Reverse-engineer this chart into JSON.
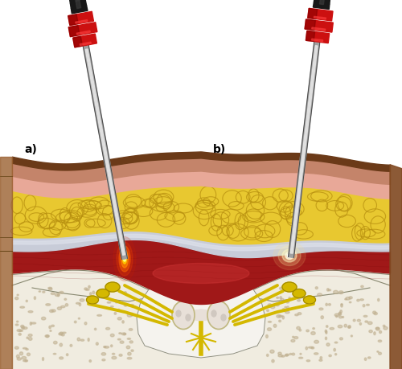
{
  "fig_width": 5.0,
  "fig_height": 4.59,
  "dpi": 100,
  "bg_color": "#ffffff",
  "label_a": "a)",
  "label_b": "b)",
  "label_fontsize": 10,
  "label_color": "#000000",
  "colors": {
    "skin_dark": "#6b3a18",
    "skin_mid": "#c4846a",
    "skin_light": "#e8a898",
    "fat_yellow": "#e8c830",
    "fat_yellow2": "#c8a010",
    "fat_cell_edge": "#b89010",
    "fascia_white": "#c8ccd8",
    "fascia_light": "#dde0ea",
    "muscle_red": "#a01818",
    "muscle_dark": "#780808",
    "muscle_light": "#c83030",
    "nerve_yellow": "#d4b800",
    "nerve_dark": "#a08800",
    "bone_white": "#e8e2d2",
    "bone_cream": "#f0ece0",
    "bone_spot": "#c0b090",
    "spinal_white": "#f5f3ee",
    "probe_black": "#181818",
    "probe_silver_light": "#e0e0e0",
    "probe_silver_mid": "#a0a0a0",
    "probe_silver_dark": "#404040",
    "probe_red": "#cc1010",
    "probe_dark_red": "#880000",
    "ablation_outer": "#dd4400",
    "ablation_mid": "#ff6600",
    "ablation_inner": "#ffcc00",
    "cooled_outer": "#fff8c0",
    "cooled_mid": "#fffde8",
    "cooled_inner": "#ffffff",
    "red_glow": "#cc3300"
  }
}
